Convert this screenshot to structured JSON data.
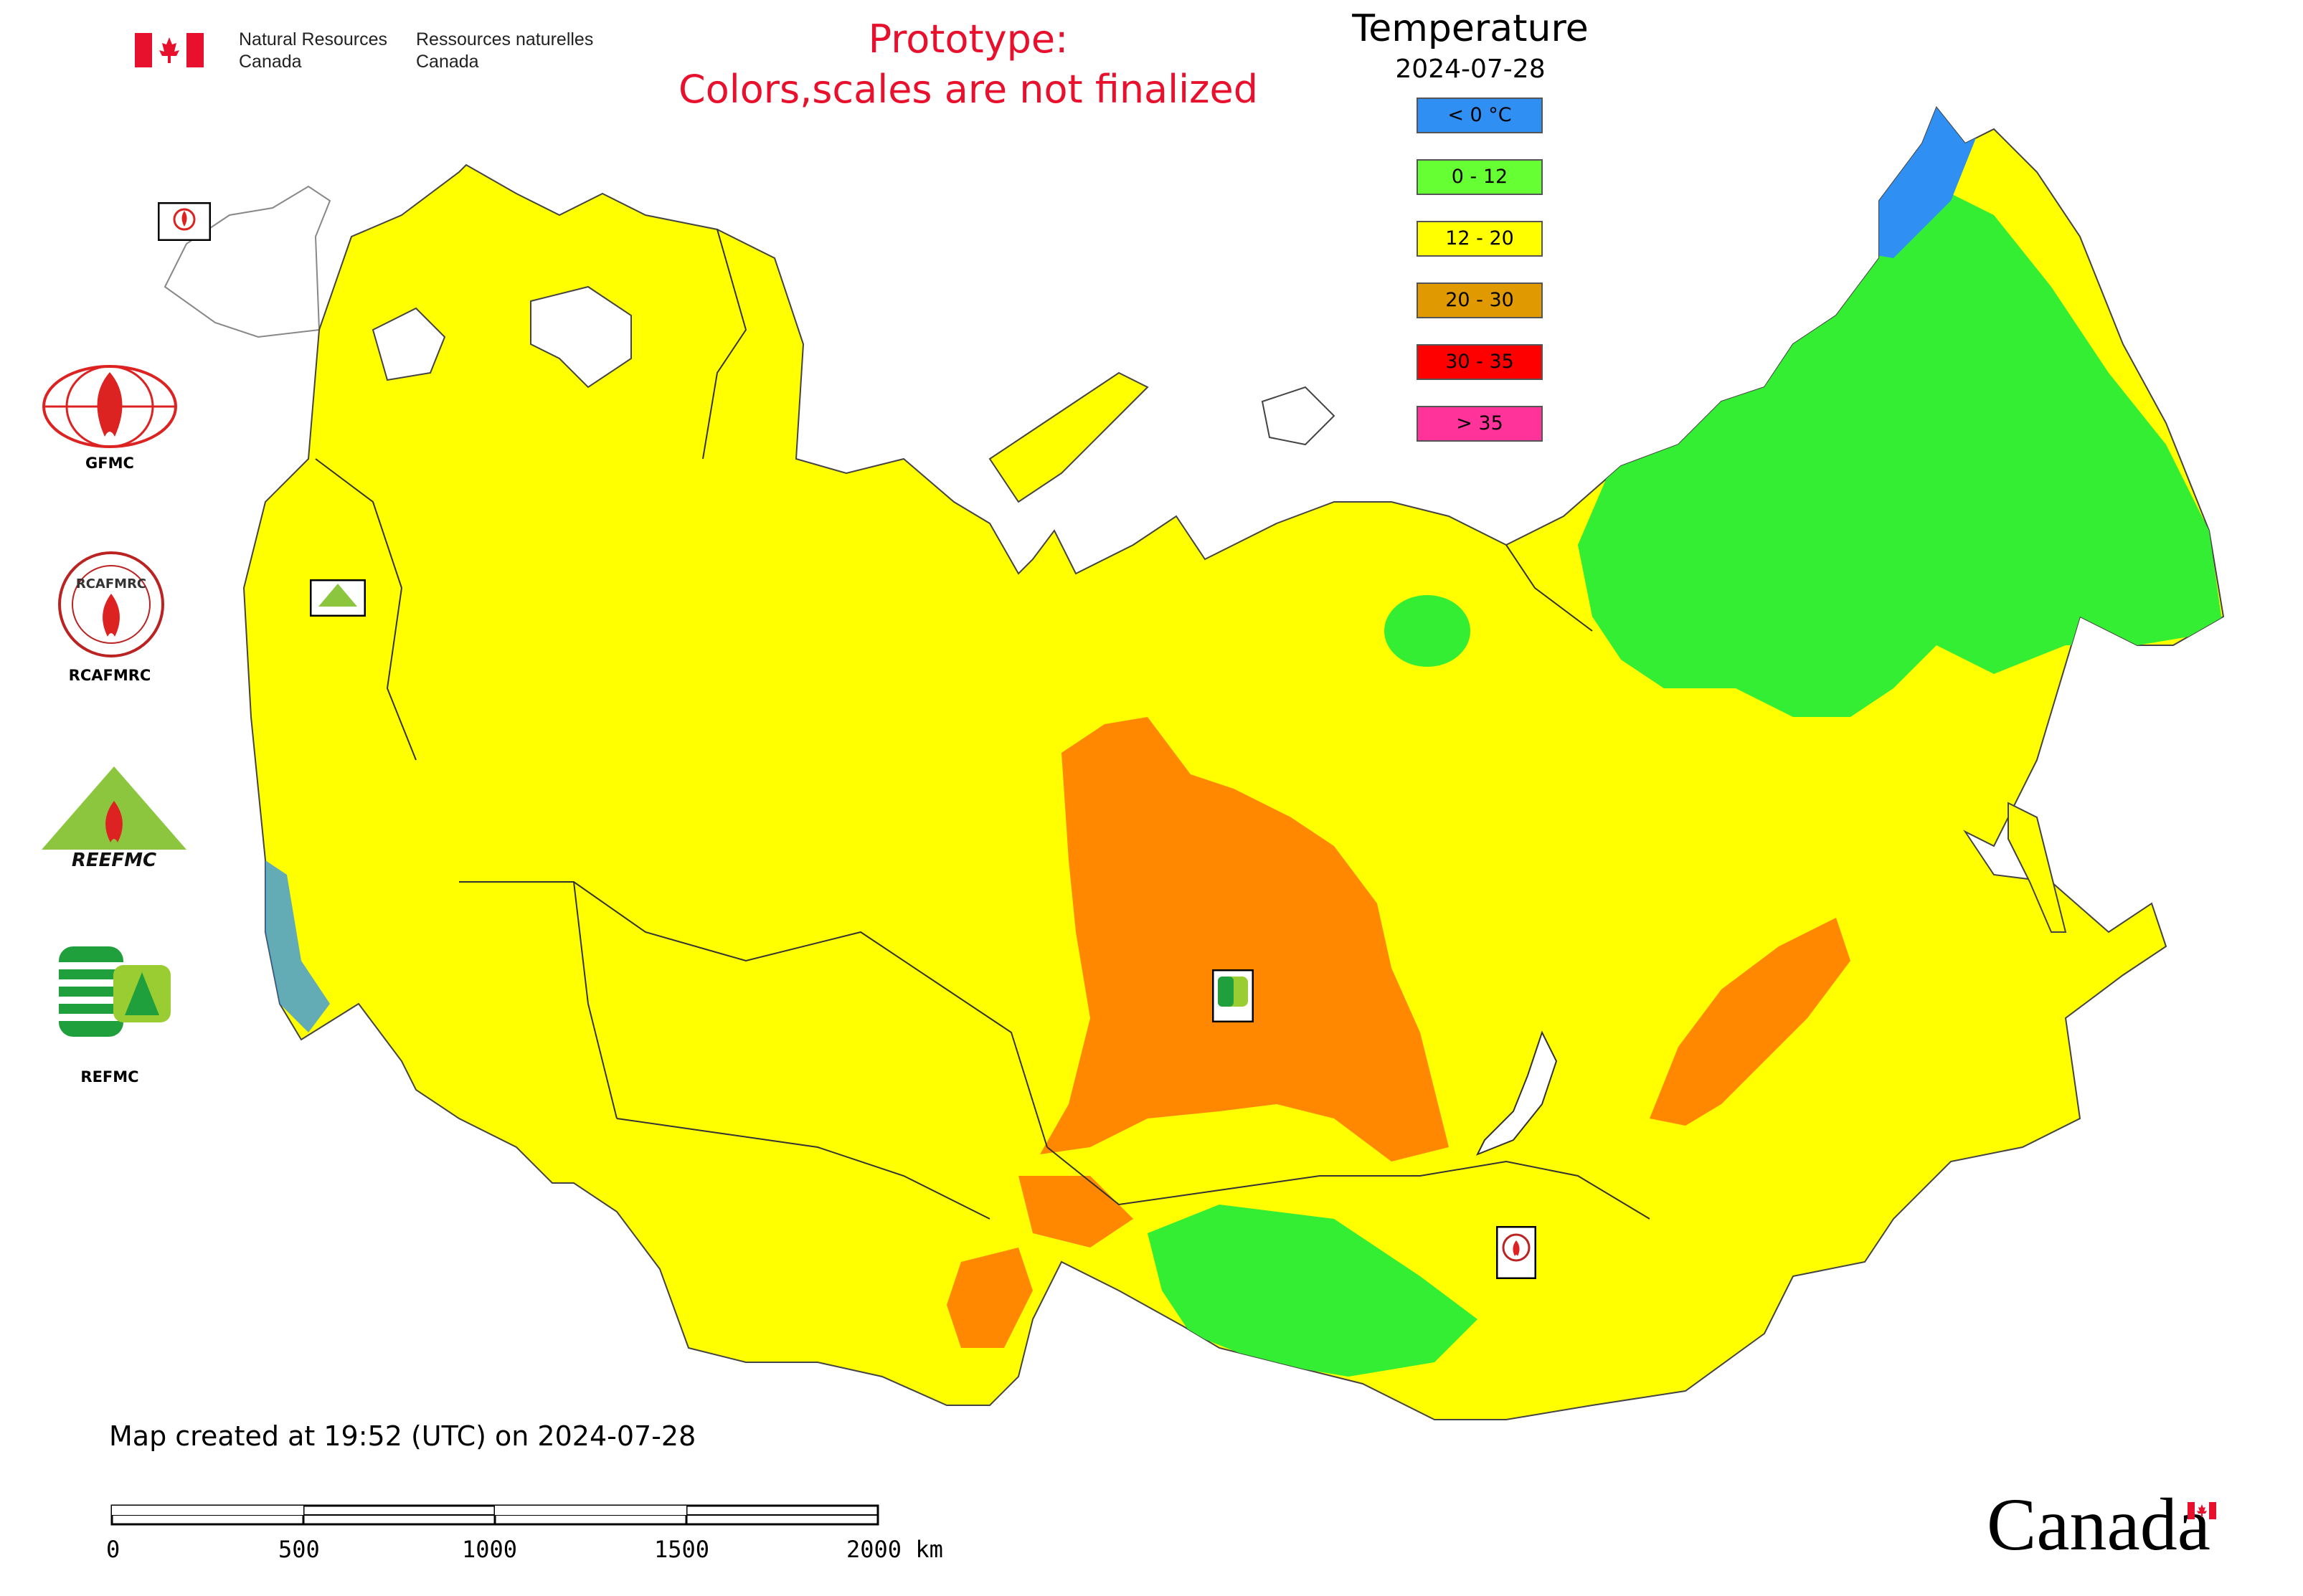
{
  "header": {
    "org_en_line1": "Natural Resources",
    "org_en_line2": "Canada",
    "org_fr_line1": "Ressources naturelles",
    "org_fr_line2": "Canada",
    "prototype_line1": "Prototype:",
    "prototype_line2": "Colors,scales are not finalized"
  },
  "legend": {
    "title": "Temperature",
    "date": "2024-07-28",
    "items": [
      {
        "label": "< 0 °C",
        "color": "#2f8ff2"
      },
      {
        "label": "0 - 12",
        "color": "#66ff33"
      },
      {
        "label": "12 - 20",
        "color": "#ffff00"
      },
      {
        "label": "20 - 30",
        "color": "#e09a00"
      },
      {
        "label": "30 - 35",
        "color": "#ff0000"
      },
      {
        "label": "> 35",
        "color": "#ff3399"
      }
    ]
  },
  "map_colors": {
    "cold": "#2f8ff2",
    "cool": "#33ee33",
    "mild": "#ffff00",
    "warm": "#ff8800",
    "border": "#444444"
  },
  "logos": {
    "gfmc": "GFMC",
    "rcafmrc": "RCAFMRC",
    "reefmc_text": "REEFMC",
    "refmc": "REFMC"
  },
  "footer": {
    "map_created": "Map created at 19:52 (UTC) on 2024-07-28",
    "scale_labels": [
      "0",
      "500",
      "1000",
      "1500",
      "2000 km"
    ],
    "wordmark": "Canada"
  }
}
